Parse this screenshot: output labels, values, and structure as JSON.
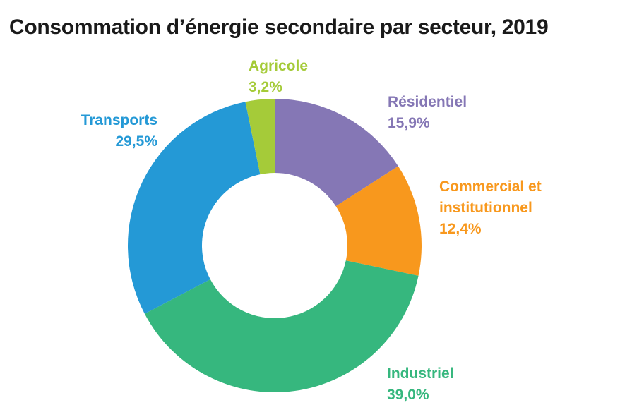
{
  "title": "Consommation d’énergie secondaire par secteur, 2019",
  "chart_data": {
    "type": "pie",
    "subtype": "donut",
    "title": "Consommation d’énergie secondaire par secteur, 2019",
    "unit": "%",
    "direction": "clockwise",
    "start_angle_deg": 0,
    "center": [
      389,
      348
    ],
    "outer_radius": 208,
    "inner_radius": 103,
    "background_color": "#ffffff",
    "title_color": "#1a1a1a",
    "slices": [
      {
        "id": "residentiel",
        "label": "Résidentiel",
        "value": 15.9,
        "value_label": "15,9%",
        "color": "#8577B5"
      },
      {
        "id": "commercial",
        "label": "Commercial et institutionnel",
        "value": 12.4,
        "value_label": "12,4%",
        "color": "#F8981D"
      },
      {
        "id": "industriel",
        "label": "Industriel",
        "value": 39.0,
        "value_label": "39,0%",
        "color": "#36B77E"
      },
      {
        "id": "transports",
        "label": "Transports",
        "value": 29.5,
        "value_label": "29,5%",
        "color": "#2499D6"
      },
      {
        "id": "agricole",
        "label": "Agricole",
        "value": 3.2,
        "value_label": "3,2%",
        "color": "#A5CB39"
      }
    ]
  }
}
